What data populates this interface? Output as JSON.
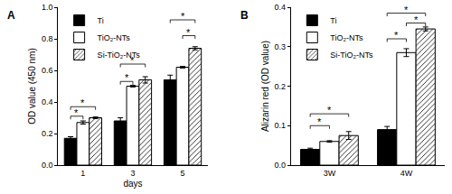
{
  "chart_data": [
    {
      "type": "bar",
      "title": "A",
      "x_label": "days",
      "y_label": "OD value (450 nm)",
      "categories": [
        "1",
        "3",
        "5"
      ],
      "ylim": [
        0,
        1
      ],
      "yticks": [
        {
          "value": 0,
          "label": "0.0"
        },
        0.2,
        0.4,
        0.6,
        0.8,
        {
          "value": 1,
          "label": "1.0"
        }
      ],
      "grid": false,
      "legend": "upper left",
      "data_labels": false,
      "series": [
        {
          "name": "Ti",
          "color": "#000000",
          "marker": "solid",
          "values": [
            0.17,
            0.28,
            0.54
          ],
          "errors": [
            0.01,
            0.02,
            0.03
          ]
        },
        {
          "name": "TiO₂-NTs",
          "color": "#ffffff",
          "marker": "solid",
          "values": [
            0.27,
            0.5,
            0.62
          ],
          "errors": [
            0.01,
            0.005,
            0.005
          ]
        },
        {
          "name": "Si-TiO₂-NTs",
          "color": "#ffffff",
          "marker": "hatch",
          "values": [
            0.3,
            0.54,
            0.74
          ],
          "errors": [
            0.005,
            0.02,
            0.01
          ]
        }
      ],
      "significance": [
        {
          "category": "1",
          "from": "Ti",
          "to": "TiO₂-NTs",
          "y": 0.31,
          "label": "*"
        },
        {
          "category": "1",
          "from": "Ti",
          "to": "Si-TiO₂-NTs",
          "y": 0.37,
          "label": "*"
        },
        {
          "category": "3",
          "from": "Ti",
          "to": "TiO₂-NTs",
          "y": 0.53,
          "label": "*"
        },
        {
          "category": "3",
          "from": "Ti",
          "to": "Si-TiO₂-NTs",
          "y": 0.64,
          "label": "*"
        },
        {
          "category": "5",
          "from": "TiO₂-NTs",
          "to": "Si-TiO₂-NTs",
          "y": 0.82,
          "label": "*"
        },
        {
          "category": "5",
          "from": "Ti",
          "to": "Si-TiO₂-NTs",
          "y": 0.92,
          "label": "*"
        }
      ]
    },
    {
      "type": "bar",
      "title": "B",
      "y_label": "Alizarin red (OD value)",
      "categories": [
        "3W",
        "4W"
      ],
      "ylim": [
        0,
        0.4
      ],
      "yticks": [
        {
          "value": 0,
          "label": "0.0"
        },
        0.1,
        0.2,
        0.3,
        0.4
      ],
      "grid": false,
      "legend": "upper left",
      "data_labels": false,
      "series": [
        {
          "name": "Ti",
          "color": "#000000",
          "marker": "solid",
          "values": [
            0.04,
            0.09
          ],
          "errors": [
            0.003,
            0.008
          ]
        },
        {
          "name": "TiO₂-NTs",
          "color": "#ffffff",
          "marker": "solid",
          "values": [
            0.06,
            0.285
          ],
          "errors": [
            0.002,
            0.01
          ]
        },
        {
          "name": "Si-TiO₂-NTs",
          "color": "#ffffff",
          "marker": "hatch",
          "values": [
            0.075,
            0.345
          ],
          "errors": [
            0.01,
            0.005
          ]
        }
      ],
      "significance": [
        {
          "category": "3W",
          "from": "Ti",
          "to": "TiO₂-NTs",
          "y": 0.1,
          "label": "*"
        },
        {
          "category": "3W",
          "from": "Ti",
          "to": "Si-TiO₂-NTs",
          "y": 0.13,
          "label": "*"
        },
        {
          "category": "4W",
          "from": "Ti",
          "to": "TiO₂-NTs",
          "y": 0.32,
          "label": "*"
        },
        {
          "category": "4W",
          "from": "TiO₂-NTs",
          "to": "Si-TiO₂-NTs",
          "y": 0.36,
          "label": "*"
        },
        {
          "category": "4W",
          "from": "Ti",
          "to": "Si-TiO₂-NTs",
          "y": 0.385,
          "label": "*"
        }
      ]
    }
  ]
}
